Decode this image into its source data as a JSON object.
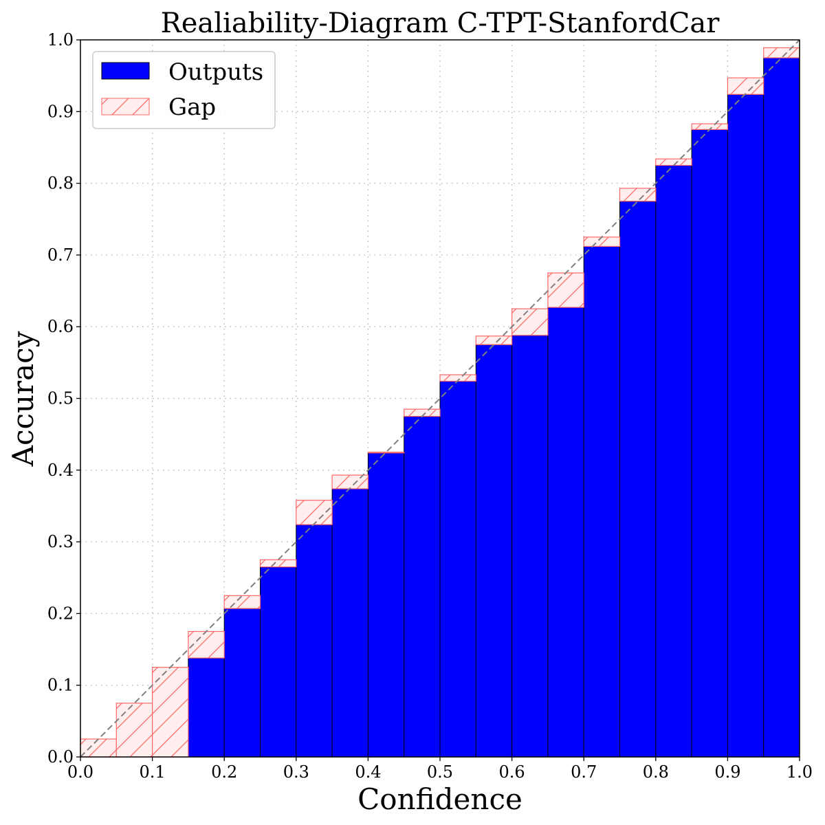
{
  "chart_data": {
    "type": "bar",
    "title": "Realiability-Diagram C-TPT-StanfordCar",
    "xlabel": "Confidence",
    "ylabel": "Accuracy",
    "xlim": [
      0.0,
      1.0
    ],
    "ylim": [
      0.0,
      1.0
    ],
    "grid": true,
    "legend_position": "top-left",
    "bin_width": 0.05,
    "x_ticks": [
      "0.0",
      "0.1",
      "0.2",
      "0.3",
      "0.4",
      "0.5",
      "0.6",
      "0.7",
      "0.8",
      "0.9",
      "1.0"
    ],
    "y_ticks": [
      "0.0",
      "0.1",
      "0.2",
      "0.3",
      "0.4",
      "0.5",
      "0.6",
      "0.7",
      "0.8",
      "0.9",
      "1.0"
    ],
    "bin_centers": [
      0.025,
      0.075,
      0.125,
      0.175,
      0.225,
      0.275,
      0.325,
      0.375,
      0.425,
      0.475,
      0.525,
      0.575,
      0.625,
      0.675,
      0.725,
      0.775,
      0.825,
      0.875,
      0.925,
      0.975
    ],
    "series": [
      {
        "name": "Outputs",
        "values": [
          0.0,
          0.0,
          0.0,
          0.138,
          0.207,
          0.265,
          0.324,
          0.374,
          0.424,
          0.475,
          0.524,
          0.575,
          0.588,
          0.627,
          0.712,
          0.775,
          0.825,
          0.875,
          0.924,
          0.975
        ]
      },
      {
        "name": "Gap",
        "values": [
          0.025,
          0.075,
          0.125,
          0.175,
          0.225,
          0.275,
          0.358,
          0.393,
          0.425,
          0.485,
          0.533,
          0.587,
          0.625,
          0.675,
          0.725,
          0.793,
          0.834,
          0.883,
          0.947,
          0.989
        ]
      }
    ],
    "colors": {
      "outputs_fill": "#0000ff",
      "outputs_edge": "#000000",
      "gap_fill": "#ffeeee",
      "gap_edge": "#ff6666",
      "gap_overlap_fill": "#7a7af0",
      "diagonal": "#808080",
      "grid": "#b0b0b0"
    }
  }
}
